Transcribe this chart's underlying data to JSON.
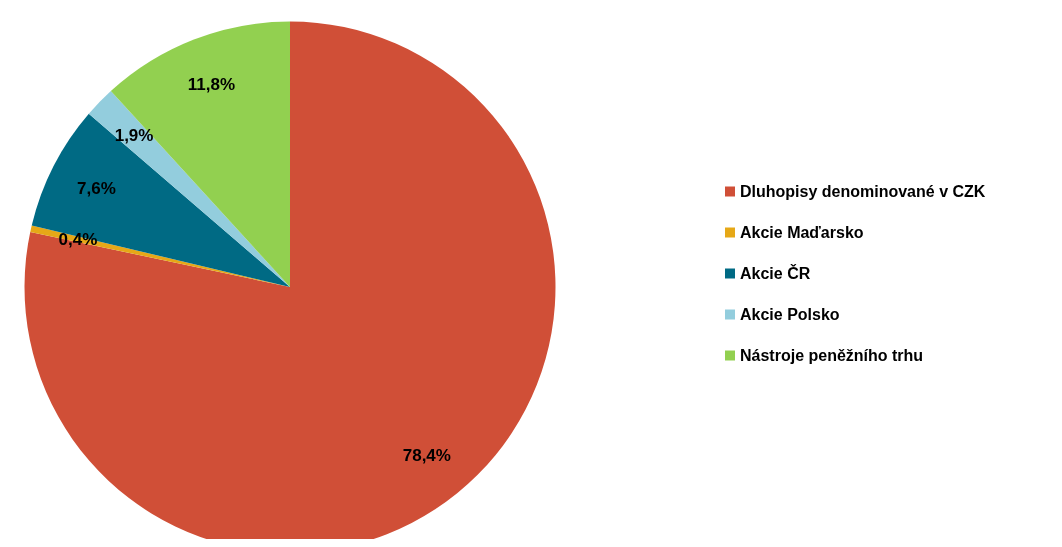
{
  "chart_data": {
    "type": "pie",
    "categories": [
      "Dluhopisy denominované v CZK",
      "Akcie Maďarsko",
      "Akcie ČR",
      "Akcie Polsko",
      "Nástroje peněžního trhu"
    ],
    "values": [
      78.4,
      0.4,
      7.6,
      1.9,
      11.8
    ],
    "colors": [
      "#d04f37",
      "#e6a817",
      "#006a84",
      "#93cddd",
      "#92d050"
    ],
    "value_labels": [
      "78,4%",
      "0,4%",
      "7,6%",
      "1,9%",
      "11,8%"
    ],
    "legend": "right"
  }
}
